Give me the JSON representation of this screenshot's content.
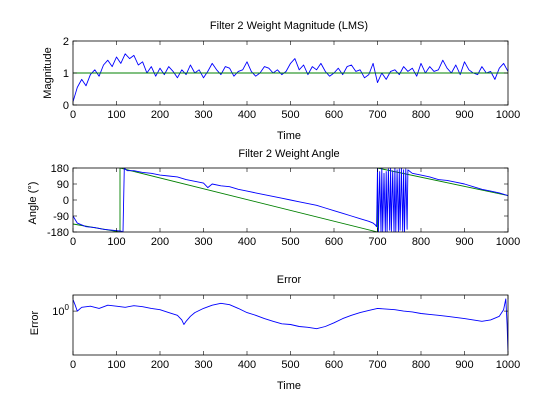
{
  "chart_data": [
    {
      "type": "line",
      "title": "Filter 2 Weight Magnitude (LMS)",
      "xlabel": "Time",
      "ylabel": "Magnitude",
      "xlim": [
        0,
        1000
      ],
      "ylim": [
        0,
        2
      ],
      "xticks": [
        "0",
        "100",
        "200",
        "300",
        "400",
        "500",
        "600",
        "700",
        "800",
        "900",
        "1000"
      ],
      "yticks": [
        "0",
        "1",
        "2"
      ],
      "grid": false,
      "colors": {
        "estimate": "#0000ff",
        "true": "#008000"
      },
      "series": [
        {
          "role": "estimate",
          "x": [
            0,
            10,
            20,
            30,
            40,
            50,
            60,
            70,
            80,
            90,
            100,
            110,
            120,
            130,
            140,
            150,
            160,
            170,
            180,
            190,
            200,
            210,
            220,
            230,
            240,
            250,
            260,
            270,
            280,
            290,
            300,
            310,
            320,
            330,
            340,
            350,
            360,
            370,
            380,
            390,
            400,
            410,
            420,
            430,
            440,
            450,
            460,
            470,
            480,
            490,
            500,
            510,
            520,
            530,
            540,
            550,
            560,
            570,
            580,
            590,
            600,
            610,
            620,
            630,
            640,
            650,
            660,
            670,
            680,
            690,
            700,
            710,
            720,
            730,
            740,
            750,
            760,
            770,
            780,
            790,
            800,
            810,
            820,
            830,
            840,
            850,
            860,
            870,
            880,
            890,
            900,
            910,
            920,
            930,
            940,
            950,
            960,
            970,
            980,
            990,
            1000
          ],
          "y": [
            0.1,
            0.55,
            0.8,
            0.6,
            0.95,
            1.1,
            0.9,
            1.25,
            1.4,
            1.2,
            1.5,
            1.3,
            1.6,
            1.45,
            1.55,
            1.25,
            1.35,
            1.0,
            1.2,
            0.9,
            1.15,
            0.95,
            1.2,
            1.05,
            0.85,
            1.1,
            0.95,
            1.25,
            1.0,
            1.1,
            0.85,
            1.05,
            1.3,
            1.1,
            0.95,
            1.2,
            1.15,
            0.9,
            1.05,
            1.1,
            1.35,
            1.05,
            0.9,
            1.0,
            1.2,
            1.15,
            1.0,
            1.1,
            0.95,
            1.05,
            1.3,
            1.45,
            1.1,
            1.25,
            0.95,
            1.2,
            1.1,
            1.3,
            1.05,
            0.9,
            1.0,
            1.15,
            0.95,
            1.2,
            1.25,
            1.05,
            1.1,
            0.85,
            0.95,
            1.3,
            0.7,
            1.0,
            0.8,
            1.05,
            1.1,
            0.95,
            1.2,
            1.05,
            1.15,
            0.9,
            1.3,
            1.0,
            1.2,
            1.05,
            1.1,
            1.4,
            1.15,
            1.0,
            1.25,
            0.95,
            1.35,
            1.1,
            1.0,
            0.95,
            1.2,
            1.0,
            1.05,
            0.8,
            1.15,
            1.3,
            1.05
          ]
        },
        {
          "role": "true",
          "x": [
            0,
            1000
          ],
          "y": [
            1,
            1
          ]
        }
      ]
    },
    {
      "type": "line",
      "title": "Filter 2 Weight Angle",
      "xlabel": "",
      "ylabel": "Angle (°)",
      "xlim": [
        0,
        1000
      ],
      "ylim": [
        -180,
        180
      ],
      "xticks": [
        "0",
        "100",
        "200",
        "300",
        "400",
        "500",
        "600",
        "700",
        "800",
        "900",
        "1000"
      ],
      "yticks": [
        "-180",
        "-90",
        "0",
        "90",
        "180"
      ],
      "grid": false,
      "colors": {
        "estimate": "#0000ff",
        "true": "#008000"
      },
      "series": [
        {
          "role": "true",
          "x": [
            0,
            108,
            108,
            700,
            700,
            1000
          ],
          "y": [
            -135,
            -180,
            180,
            -180,
            180,
            25
          ]
        },
        {
          "role": "estimate",
          "x": [
            0,
            10,
            30,
            50,
            70,
            90,
            110,
            115,
            118,
            122,
            125,
            140,
            160,
            180,
            200,
            220,
            240,
            260,
            280,
            300,
            310,
            320,
            340,
            360,
            380,
            400,
            420,
            440,
            460,
            480,
            500,
            520,
            540,
            560,
            580,
            600,
            620,
            640,
            660,
            680,
            690,
            695,
            698,
            700,
            702,
            705,
            708,
            710,
            712,
            715,
            718,
            720,
            722,
            725,
            728,
            730,
            732,
            735,
            738,
            740,
            742,
            745,
            748,
            750,
            752,
            755,
            758,
            760,
            762,
            765,
            768,
            770,
            775,
            780,
            800,
            820,
            840,
            860,
            880,
            900,
            920,
            940,
            960,
            980,
            1000
          ],
          "y": [
            -90,
            -130,
            -150,
            -155,
            -165,
            -170,
            -175,
            -180,
            180,
            170,
            165,
            165,
            155,
            150,
            140,
            135,
            130,
            115,
            105,
            95,
            70,
            90,
            80,
            75,
            60,
            50,
            40,
            30,
            20,
            10,
            0,
            -10,
            -20,
            -30,
            -45,
            -60,
            -75,
            -90,
            -105,
            -120,
            -130,
            -140,
            -150,
            180,
            -180,
            160,
            -180,
            180,
            -180,
            150,
            -180,
            160,
            -180,
            175,
            -170,
            180,
            -175,
            165,
            -180,
            180,
            -180,
            170,
            -180,
            175,
            -170,
            180,
            -175,
            170,
            -180,
            175,
            -165,
            170,
            160,
            150,
            140,
            130,
            115,
            110,
            100,
            90,
            75,
            60,
            50,
            40,
            25
          ]
        }
      ]
    },
    {
      "type": "line",
      "title": "Error",
      "xlabel": "Time",
      "ylabel": "Error",
      "xlim": [
        0,
        1000
      ],
      "yscale": "log",
      "ylim": [
        0.05,
        3
      ],
      "xticks": [
        "0",
        "100",
        "200",
        "300",
        "400",
        "500",
        "600",
        "700",
        "800",
        "900",
        "1000"
      ],
      "yticks": [
        "10^0"
      ],
      "grid": false,
      "colors": {
        "estimate": "#0000ff"
      },
      "series": [
        {
          "role": "estimate",
          "x": [
            0,
            5,
            10,
            20,
            40,
            60,
            80,
            100,
            120,
            140,
            160,
            180,
            200,
            220,
            240,
            250,
            255,
            260,
            270,
            280,
            300,
            320,
            340,
            360,
            380,
            400,
            420,
            440,
            460,
            480,
            500,
            520,
            540,
            560,
            580,
            600,
            620,
            640,
            660,
            680,
            700,
            720,
            740,
            760,
            780,
            800,
            820,
            840,
            860,
            880,
            900,
            920,
            940,
            960,
            980,
            990,
            995,
            998,
            1000
          ],
          "y": [
            2.2,
            1.5,
            1.0,
            1.3,
            1.4,
            1.2,
            1.5,
            1.4,
            1.3,
            1.45,
            1.35,
            1.2,
            1.1,
            0.9,
            0.75,
            0.55,
            0.4,
            0.5,
            0.7,
            0.9,
            1.2,
            1.5,
            1.7,
            1.55,
            1.2,
            0.9,
            0.75,
            0.6,
            0.5,
            0.42,
            0.4,
            0.35,
            0.33,
            0.3,
            0.35,
            0.45,
            0.6,
            0.75,
            0.9,
            1.05,
            1.2,
            1.15,
            1.1,
            1.0,
            0.95,
            0.85,
            0.8,
            0.75,
            0.7,
            0.65,
            0.6,
            0.55,
            0.5,
            0.55,
            0.7,
            1.1,
            2.3,
            0.4,
            0.06
          ]
        }
      ]
    }
  ]
}
